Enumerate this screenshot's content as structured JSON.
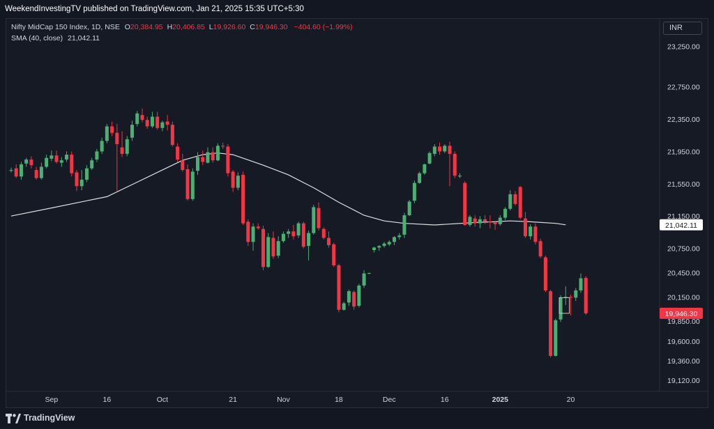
{
  "header": {
    "published": "WeekendInvestingTV published on TradingView.com, Jan 21, 2025 15:35 UTC+5:30"
  },
  "legend": {
    "symbol": "Nifty MidCap 150 Index, 1D, NSE",
    "o_label": "O",
    "o": "20,384.95",
    "h_label": "H",
    "h": "20,406.85",
    "l_label": "L",
    "l": "19,926.60",
    "c_label": "C",
    "c": "19,946.30",
    "change": "−404.60 (−1.99%)",
    "sma_label": "SMA (40, close)",
    "sma_value": "21,042.11"
  },
  "currency_button": "INR",
  "footer": {
    "brand": "TradingView"
  },
  "colors": {
    "up": "#4caf73",
    "down": "#f23645",
    "sma": "#e0e0e0",
    "bg": "#161a25",
    "grid": "#1e222d"
  },
  "chart_data": {
    "type": "candlestick",
    "ylim": [
      18980,
      23600
    ],
    "y_ticks": [
      "23,250.00",
      "22,750.00",
      "22,350.00",
      "21,950.00",
      "21,550.00",
      "21,150.00",
      "20,750.00",
      "20,450.00",
      "20,150.00",
      "19,850.00",
      "19,600.00",
      "19,360.00",
      "19,120.00"
    ],
    "y_tick_values": [
      23250,
      22750,
      22350,
      21950,
      21550,
      21150,
      20750,
      20450,
      20150,
      19850,
      19600,
      19360,
      19120
    ],
    "x_ticks": [
      {
        "label": "Sep",
        "i": 8
      },
      {
        "label": "16",
        "i": 19
      },
      {
        "label": "Oct",
        "i": 30
      },
      {
        "label": "21",
        "i": 44
      },
      {
        "label": "Nov",
        "i": 54
      },
      {
        "label": "18",
        "i": 65
      },
      {
        "label": "Dec",
        "i": 75
      },
      {
        "label": "16",
        "i": 86
      },
      {
        "label": "2025",
        "i": 97
      },
      {
        "label": "20",
        "i": 111
      }
    ],
    "price_labels": [
      {
        "text": "21,042.11",
        "value": 21042.11,
        "kind": "sma"
      },
      {
        "text": "19,946.30",
        "value": 19946.3,
        "kind": "last"
      }
    ],
    "candles": [
      [
        21710,
        21750,
        21690,
        21720
      ],
      [
        21740,
        21790,
        21620,
        21640
      ],
      [
        21640,
        21820,
        21600,
        21790
      ],
      [
        21800,
        21870,
        21760,
        21850
      ],
      [
        21850,
        21890,
        21740,
        21780
      ],
      [
        21720,
        21760,
        21600,
        21620
      ],
      [
        21620,
        21810,
        21600,
        21760
      ],
      [
        21760,
        21910,
        21740,
        21870
      ],
      [
        21860,
        21960,
        21830,
        21900
      ],
      [
        21900,
        21960,
        21800,
        21820
      ],
      [
        21810,
        21880,
        21760,
        21840
      ],
      [
        21850,
        21950,
        21820,
        21910
      ],
      [
        21910,
        21950,
        21640,
        21680
      ],
      [
        21690,
        21720,
        21460,
        21520
      ],
      [
        21520,
        21720,
        21470,
        21600
      ],
      [
        21600,
        21780,
        21570,
        21740
      ],
      [
        21740,
        21870,
        21720,
        21840
      ],
      [
        21850,
        21980,
        21820,
        21950
      ],
      [
        21950,
        22120,
        21920,
        22080
      ],
      [
        22080,
        22290,
        22050,
        22260
      ],
      [
        22260,
        22320,
        22140,
        22180
      ],
      [
        22180,
        22290,
        21460,
        22040
      ],
      [
        22000,
        22200,
        21880,
        21920
      ],
      [
        21920,
        22140,
        21890,
        22100
      ],
      [
        22120,
        22330,
        22080,
        22280
      ],
      [
        22290,
        22450,
        22260,
        22420
      ],
      [
        22400,
        22480,
        22310,
        22340
      ],
      [
        22340,
        22380,
        22230,
        22260
      ],
      [
        22260,
        22440,
        22240,
        22380
      ],
      [
        22380,
        22440,
        22220,
        22240
      ],
      [
        22240,
        22330,
        22200,
        22310
      ],
      [
        22320,
        22400,
        22210,
        22280
      ],
      [
        22280,
        22320,
        22010,
        22030
      ],
      [
        22010,
        22050,
        21820,
        21850
      ],
      [
        21840,
        21920,
        21700,
        21720
      ],
      [
        21730,
        21790,
        21340,
        21360
      ],
      [
        21360,
        21740,
        21340,
        21700
      ],
      [
        21710,
        21940,
        21660,
        21880
      ],
      [
        21880,
        21960,
        21780,
        21820
      ],
      [
        21810,
        22000,
        21800,
        21940
      ],
      [
        21940,
        22000,
        21810,
        21840
      ],
      [
        21840,
        22050,
        21830,
        22020
      ],
      [
        22020,
        22060,
        21980,
        22010
      ],
      [
        22010,
        22040,
        21640,
        21680
      ],
      [
        21700,
        21720,
        21450,
        21500
      ],
      [
        21500,
        21690,
        21470,
        21650
      ],
      [
        21660,
        21700,
        21040,
        21060
      ],
      [
        21080,
        21110,
        20780,
        20830
      ],
      [
        20830,
        21060,
        20720,
        21020
      ],
      [
        21020,
        21060,
        20980,
        21000
      ],
      [
        20990,
        21030,
        20480,
        20520
      ],
      [
        20520,
        20940,
        20510,
        20890
      ],
      [
        20880,
        20960,
        20620,
        20650
      ],
      [
        20660,
        20900,
        20630,
        20840
      ],
      [
        20840,
        20960,
        20820,
        20930
      ],
      [
        20930,
        20990,
        20880,
        20960
      ],
      [
        20960,
        21040,
        20860,
        20900
      ],
      [
        20910,
        21080,
        20880,
        21060
      ],
      [
        21060,
        21080,
        20750,
        20770
      ],
      [
        20780,
        20970,
        20600,
        20940
      ],
      [
        20940,
        21290,
        20920,
        21260
      ],
      [
        21250,
        21320,
        20970,
        21000
      ],
      [
        20990,
        21010,
        20860,
        20880
      ],
      [
        20880,
        20960,
        20760,
        20790
      ],
      [
        20800,
        20820,
        20520,
        20540
      ],
      [
        20540,
        20560,
        19960,
        19990
      ],
      [
        19990,
        20090,
        19980,
        20070
      ],
      [
        20080,
        20240,
        20040,
        20220
      ],
      [
        20210,
        20230,
        19990,
        20030
      ],
      [
        20040,
        20310,
        20020,
        20290
      ],
      [
        20290,
        20480,
        20260,
        20440
      ],
      [
        20440,
        20450,
        20430,
        20445
      ],
      [
        20730,
        20770,
        20700,
        20760
      ],
      [
        20760,
        20790,
        20720,
        20780
      ],
      [
        20780,
        20830,
        20760,
        20810
      ],
      [
        20800,
        20850,
        20780,
        20830
      ],
      [
        20830,
        20900,
        20790,
        20890
      ],
      [
        20890,
        20940,
        20860,
        20910
      ],
      [
        20920,
        21190,
        20880,
        21160
      ],
      [
        21160,
        21350,
        21150,
        21330
      ],
      [
        21340,
        21590,
        21310,
        21560
      ],
      [
        21560,
        21700,
        21550,
        21680
      ],
      [
        21680,
        21800,
        21660,
        21790
      ],
      [
        21800,
        21950,
        21790,
        21930
      ],
      [
        21920,
        22040,
        21890,
        22010
      ],
      [
        22010,
        22060,
        21910,
        21950
      ],
      [
        21950,
        22040,
        21930,
        22020
      ],
      [
        22020,
        22070,
        21520,
        21920
      ],
      [
        21920,
        21950,
        21620,
        21650
      ],
      [
        21640,
        21680,
        21620,
        21650
      ],
      [
        21560,
        21580,
        21030,
        21040
      ],
      [
        21040,
        21160,
        21020,
        21140
      ],
      [
        21120,
        21160,
        21020,
        21060
      ],
      [
        21060,
        21150,
        21000,
        21110
      ],
      [
        21110,
        21160,
        21050,
        21080
      ],
      [
        21080,
        21160,
        21000,
        21070
      ],
      [
        21070,
        21090,
        20980,
        21050
      ],
      [
        21050,
        21160,
        21030,
        21130
      ],
      [
        21130,
        21260,
        21100,
        21240
      ],
      [
        21240,
        21470,
        21220,
        21420
      ],
      [
        21420,
        21460,
        21280,
        21300
      ],
      [
        21510,
        21520,
        21110,
        21130
      ],
      [
        21120,
        21200,
        20880,
        20900
      ],
      [
        20900,
        21050,
        20860,
        21020
      ],
      [
        21020,
        21060,
        20800,
        20830
      ],
      [
        20840,
        20870,
        20630,
        20650
      ],
      [
        20640,
        20660,
        20210,
        20230
      ],
      [
        20220,
        20240,
        19400,
        19420
      ],
      [
        19420,
        19880,
        19410,
        19860
      ],
      [
        19870,
        20170,
        19840,
        20140
      ],
      [
        20140,
        20280,
        20050,
        20150
      ],
      [
        20150,
        20180,
        19920,
        20140
      ],
      [
        20140,
        20260,
        20100,
        20230
      ],
      [
        20230,
        20440,
        20200,
        20380
      ],
      [
        20385,
        20407,
        19927,
        19946
      ]
    ],
    "sma": [
      [
        0,
        21150
      ],
      [
        8,
        21250
      ],
      [
        19,
        21390
      ],
      [
        25,
        21570
      ],
      [
        30,
        21720
      ],
      [
        34,
        21840
      ],
      [
        38,
        21910
      ],
      [
        41,
        21930
      ],
      [
        44,
        21910
      ],
      [
        50,
        21780
      ],
      [
        55,
        21660
      ],
      [
        60,
        21500
      ],
      [
        65,
        21320
      ],
      [
        70,
        21160
      ],
      [
        74,
        21090
      ],
      [
        78,
        21060
      ],
      [
        84,
        21040
      ],
      [
        92,
        21070
      ],
      [
        96,
        21080
      ],
      [
        99,
        21090
      ],
      [
        103,
        21080
      ],
      [
        108,
        21060
      ],
      [
        110,
        21042
      ]
    ],
    "pending_box": {
      "from_index": 109,
      "to_index": 111,
      "low": 19946.3,
      "high": 20140
    }
  }
}
